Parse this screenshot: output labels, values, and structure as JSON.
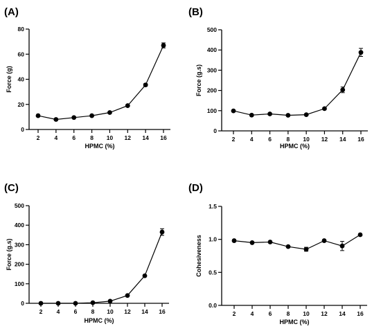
{
  "chart_data": [
    {
      "type": "line",
      "panel_label": "(A)",
      "xlabel": "HPMC (%)",
      "ylabel": "Force (g)",
      "x": [
        2,
        4,
        6,
        8,
        10,
        12,
        14,
        16
      ],
      "xticks": [
        "2",
        "4",
        "6",
        "8",
        "10",
        "12",
        "14",
        "16"
      ],
      "ylim": [
        0,
        80
      ],
      "yticks": [
        "0",
        "20",
        "40",
        "60",
        "80"
      ],
      "series": [
        {
          "values": [
            11,
            8,
            9.5,
            11,
            13.5,
            19,
            35.5,
            67
          ],
          "errors": [
            0.5,
            0.5,
            0.5,
            0.5,
            0.6,
            0.6,
            1,
            2
          ]
        }
      ]
    },
    {
      "type": "line",
      "panel_label": "(B)",
      "xlabel": "HPMC (%)",
      "ylabel": "Force (g.s)",
      "x": [
        2,
        4,
        6,
        8,
        10,
        12,
        14,
        16
      ],
      "xticks": [
        "2",
        "4",
        "6",
        "8",
        "10",
        "12",
        "14",
        "16"
      ],
      "ylim": [
        0,
        500
      ],
      "yticks": [
        "0",
        "100",
        "200",
        "300",
        "400",
        "500"
      ],
      "series": [
        {
          "values": [
            99,
            78,
            84,
            77,
            80,
            110,
            203,
            388
          ],
          "errors": [
            3,
            3,
            3,
            3,
            3,
            5,
            14,
            20
          ]
        }
      ]
    },
    {
      "type": "line",
      "panel_label": "(C)",
      "xlabel": "HPMC (%)",
      "ylabel": "Force (g.s)",
      "x": [
        2,
        4,
        6,
        8,
        10,
        12,
        14,
        16
      ],
      "xticks": [
        "2",
        "4",
        "6",
        "8",
        "10",
        "12",
        "14",
        "16"
      ],
      "ylim": [
        0,
        500
      ],
      "yticks": [
        "0",
        "100",
        "200",
        "300",
        "400",
        "500"
      ],
      "series": [
        {
          "values": [
            0,
            0,
            0,
            3,
            11,
            40,
            141,
            365
          ],
          "errors": [
            0,
            0,
            0,
            0,
            0,
            1,
            2,
            17
          ]
        }
      ]
    },
    {
      "type": "line",
      "panel_label": "(D)",
      "xlabel": "HPMC (%)",
      "ylabel": "Cohesiveness",
      "x": [
        2,
        4,
        6,
        8,
        10,
        12,
        14,
        16
      ],
      "xticks": [
        "2",
        "4",
        "6",
        "8",
        "10",
        "12",
        "14",
        "16"
      ],
      "ylim": [
        0,
        1.5
      ],
      "yticks": [
        "0.0",
        "0.5",
        "1.0",
        "1.5"
      ],
      "series": [
        {
          "values": [
            0.98,
            0.95,
            0.96,
            0.89,
            0.85,
            0.98,
            0.9,
            1.07
          ],
          "errors": [
            0.01,
            0.01,
            0.01,
            0.01,
            0.03,
            0.01,
            0.07,
            0.01
          ]
        }
      ]
    }
  ]
}
